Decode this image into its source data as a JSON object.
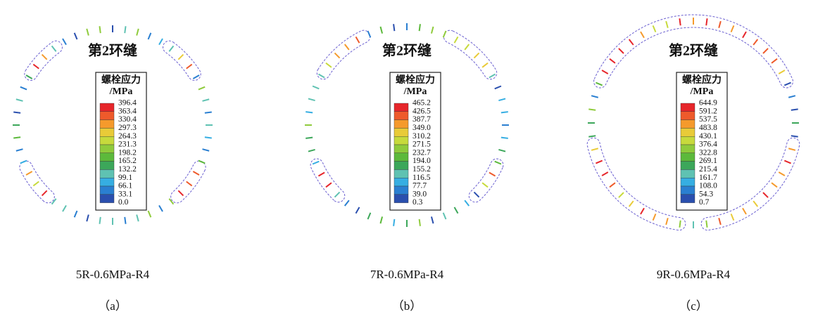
{
  "panels": [
    {
      "title": "第2环缝",
      "legend_title": "螺栓应力",
      "legend_unit": "/MPa",
      "legend_labels": [
        "396.4",
        "363.4",
        "330.4",
        "297.3",
        "264.3",
        "231.3",
        "198.2",
        "165.2",
        "132.2",
        "99.1",
        "66.1",
        "33.1",
        "0.0"
      ],
      "caption": "5R-0.6MPa-R4",
      "label": "（a）"
    },
    {
      "title": "第2环缝",
      "legend_title": "螺栓应力",
      "legend_unit": "/MPa",
      "legend_labels": [
        "465.2",
        "426.5",
        "387.7",
        "349.0",
        "310.2",
        "271.5",
        "232.7",
        "194.0",
        "155.2",
        "116.5",
        "77.7",
        "39.0",
        "0.3"
      ],
      "caption": "7R-0.6MPa-R4",
      "label": "（b）"
    },
    {
      "title": "第2环缝",
      "legend_title": "螺栓应力",
      "legend_unit": "/MPa",
      "legend_labels": [
        "644.9",
        "591.2",
        "537.5",
        "483.8",
        "430.1",
        "376.4",
        "322.8",
        "269.1",
        "215.4",
        "161.7",
        "108.0",
        "54.3",
        "0.7"
      ],
      "caption": "9R-0.6MPa-R4",
      "label": "（c）"
    }
  ]
}
